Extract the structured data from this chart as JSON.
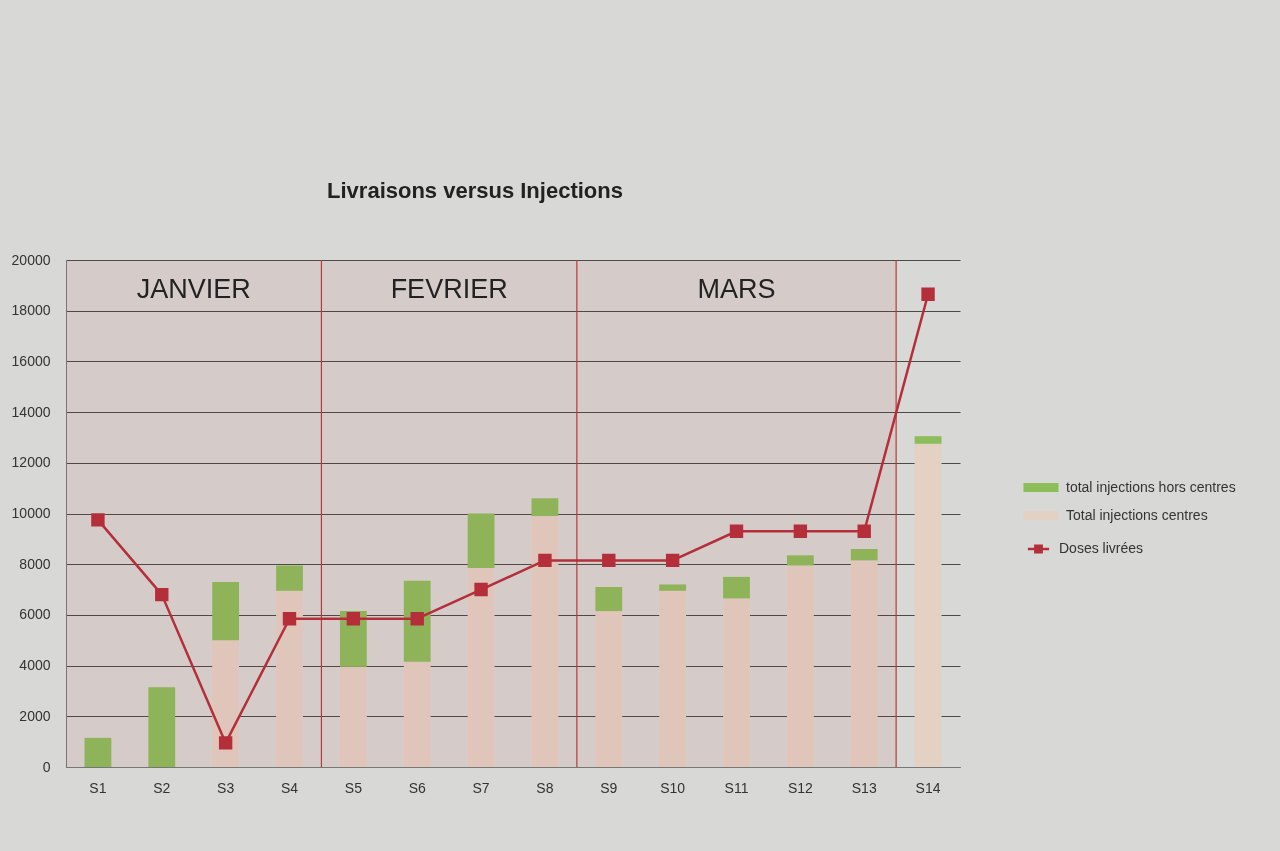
{
  "chart_data": {
    "type": "bar",
    "title": "Livraisons versus Injections",
    "categories": [
      "S1",
      "S2",
      "S3",
      "S4",
      "S5",
      "S6",
      "S7",
      "S8",
      "S9",
      "S10",
      "S11",
      "S12",
      "S13",
      "S14"
    ],
    "stacked": true,
    "series": [
      {
        "name": "Total injections centres",
        "color": "#e3d1c4",
        "values": [
          null,
          null,
          5000,
          6950,
          3950,
          4150,
          7850,
          9900,
          6150,
          6950,
          6650,
          7950,
          8150,
          12750
        ]
      },
      {
        "name": "total injections hors centres",
        "color": "#8cbd5b",
        "values": [
          1150,
          3150,
          2300,
          1000,
          2200,
          3200,
          2150,
          700,
          950,
          250,
          850,
          400,
          450,
          300
        ]
      },
      {
        "name": "Doses livrées",
        "type": "line",
        "color": "#b42f3a",
        "values": [
          9750,
          6800,
          950,
          5850,
          5850,
          5850,
          7000,
          8150,
          8150,
          8150,
          9300,
          9300,
          9300,
          18650
        ]
      }
    ],
    "ylim": [
      0,
      20000
    ],
    "yticks": [
      0,
      2000,
      4000,
      6000,
      8000,
      10000,
      12000,
      14000,
      16000,
      18000,
      20000
    ],
    "grid": "y",
    "legend": "right",
    "marker": "square",
    "bands": [
      {
        "axis": "x",
        "from": "S1",
        "to": "S4",
        "label": "JANVIER",
        "color": "#b83a3a"
      },
      {
        "axis": "x",
        "from": "S5",
        "to": "S8",
        "label": "FEVRIER",
        "color": "#b83a3a"
      },
      {
        "axis": "x",
        "from": "S9",
        "to": "S13",
        "label": "MARS",
        "color": "#b83a3a"
      }
    ]
  }
}
